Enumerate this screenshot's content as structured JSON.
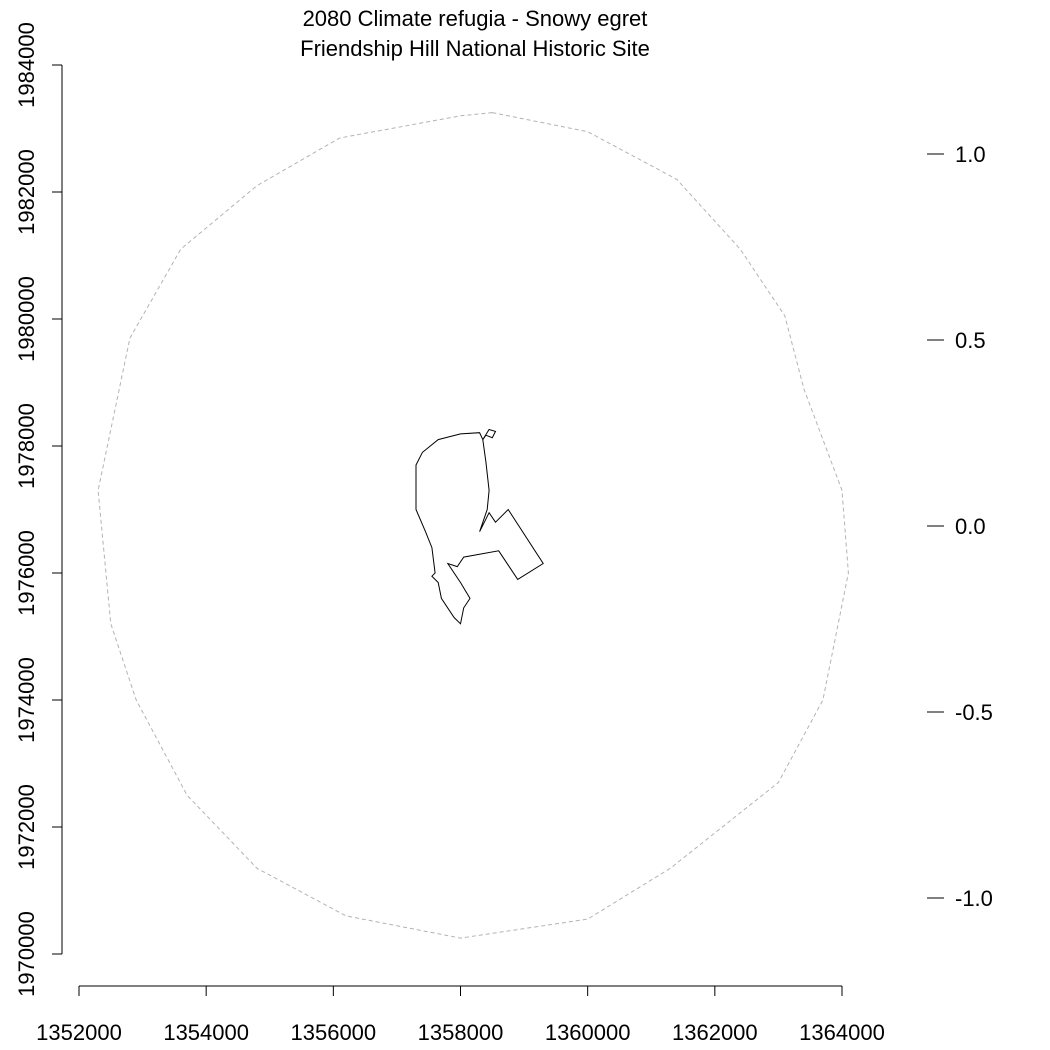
{
  "chart_data": {
    "type": "map",
    "title_line1": "2080 Climate refugia - Snowy egret",
    "title_line2": "Friendship Hill National Historic Site",
    "x_axis": {
      "ticks": [
        1352000,
        1354000,
        1356000,
        1358000,
        1360000,
        1362000,
        1364000
      ],
      "tick_labels": [
        "1352000",
        "1354000",
        "1356000",
        "1358000",
        "1360000",
        "1362000",
        "1364000"
      ],
      "range": [
        1352000,
        1364000
      ]
    },
    "y_axis": {
      "ticks": [
        1970000,
        1972000,
        1974000,
        1976000,
        1978000,
        1980000,
        1982000,
        1984000
      ],
      "tick_labels": [
        "1970000",
        "1972000",
        "1974000",
        "1976000",
        "1978000",
        "1980000",
        "1982000",
        "1984000"
      ],
      "range": [
        1970000,
        1984000
      ]
    },
    "legend_scale": {
      "ticks": [
        1.0,
        0.5,
        0.0,
        -0.5,
        -1.0
      ],
      "tick_labels": [
        "1.0",
        "0.5",
        "0.0",
        "-0.5",
        "-1.0"
      ],
      "range": [
        -1.0,
        1.0
      ]
    },
    "buffer_outline": {
      "style": "dashed",
      "color": "#b3b3b3",
      "points": [
        [
          1358500,
          1983250
        ],
        [
          1360000,
          1982950
        ],
        [
          1361400,
          1982200
        ],
        [
          1362400,
          1981100
        ],
        [
          1363100,
          1980050
        ],
        [
          1363400,
          1978900
        ],
        [
          1364000,
          1977300
        ],
        [
          1364100,
          1976000
        ],
        [
          1363700,
          1974000
        ],
        [
          1363000,
          1972700
        ],
        [
          1361300,
          1971350
        ],
        [
          1360000,
          1970550
        ],
        [
          1358000,
          1970250
        ],
        [
          1356200,
          1970600
        ],
        [
          1354800,
          1971350
        ],
        [
          1353700,
          1972500
        ],
        [
          1352900,
          1974000
        ],
        [
          1352500,
          1975200
        ],
        [
          1352300,
          1977300
        ],
        [
          1352800,
          1979700
        ],
        [
          1353600,
          1981100
        ],
        [
          1354800,
          1982100
        ],
        [
          1356100,
          1982850
        ],
        [
          1358000,
          1983200
        ]
      ]
    },
    "park_boundary": {
      "style": "solid",
      "color": "#000000",
      "points": [
        [
          1358450,
          1978260
        ],
        [
          1358550,
          1978230
        ],
        [
          1358500,
          1978130
        ],
        [
          1358400,
          1978170
        ],
        [
          1358350,
          1978100
        ],
        [
          1358300,
          1978210
        ],
        [
          1358000,
          1978190
        ],
        [
          1357650,
          1978100
        ],
        [
          1357400,
          1977900
        ],
        [
          1357300,
          1977700
        ],
        [
          1357300,
          1977000
        ],
        [
          1357450,
          1976650
        ],
        [
          1357550,
          1976400
        ],
        [
          1357600,
          1976000
        ],
        [
          1357550,
          1975950
        ],
        [
          1357650,
          1975850
        ],
        [
          1357700,
          1975600
        ],
        [
          1357900,
          1975300
        ],
        [
          1358000,
          1975200
        ],
        [
          1358050,
          1975450
        ],
        [
          1358150,
          1975600
        ],
        [
          1358000,
          1975850
        ],
        [
          1357800,
          1976150
        ],
        [
          1357950,
          1976100
        ],
        [
          1358050,
          1976250
        ],
        [
          1358600,
          1976350
        ],
        [
          1358900,
          1975900
        ],
        [
          1359300,
          1976150
        ],
        [
          1358750,
          1977000
        ],
        [
          1358550,
          1976800
        ],
        [
          1358450,
          1976950
        ],
        [
          1358300,
          1976650
        ],
        [
          1358420,
          1977000
        ],
        [
          1358450,
          1977300
        ],
        [
          1358400,
          1977750
        ],
        [
          1358350,
          1978100
        ]
      ]
    }
  }
}
